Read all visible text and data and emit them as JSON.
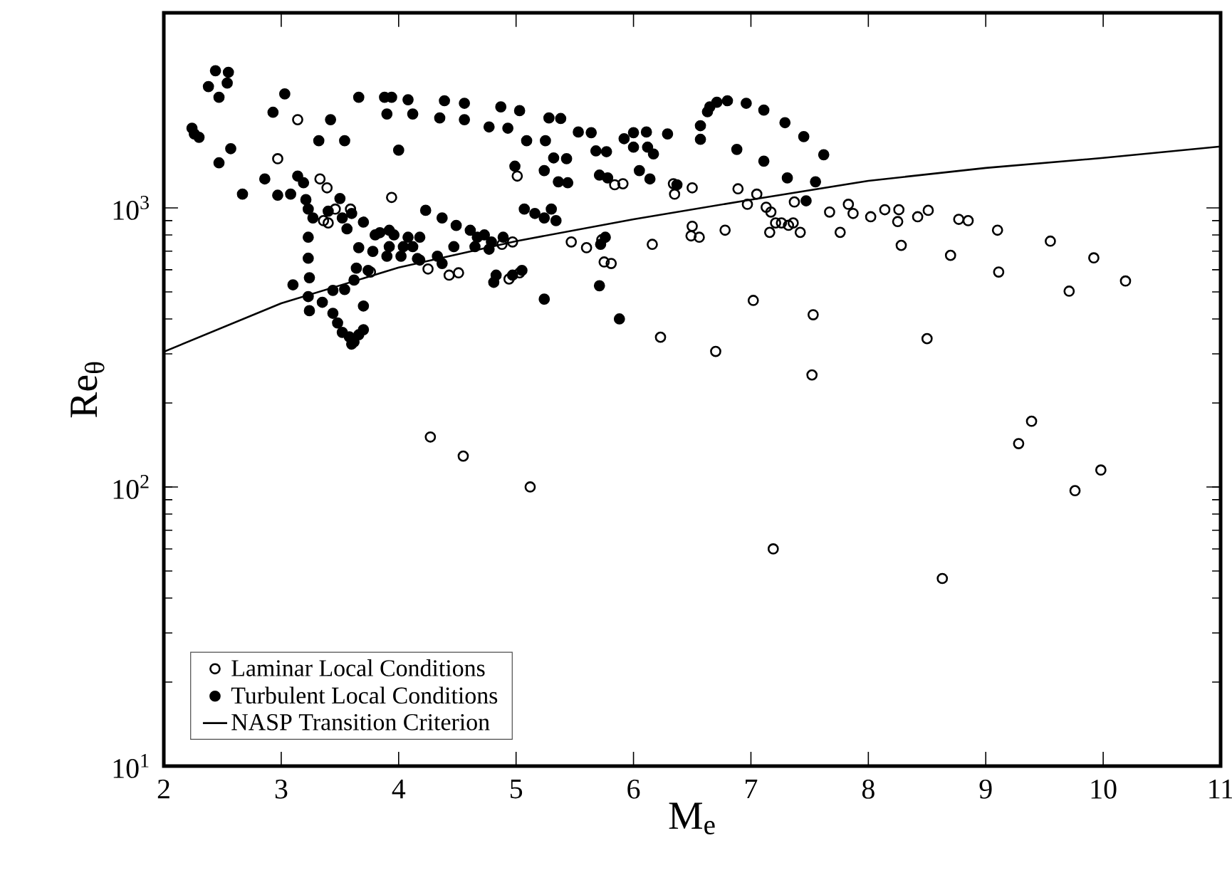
{
  "chart_data": {
    "type": "scatter",
    "xlabel": "M$_{e}$",
    "ylabel": "Re$_{θ}$",
    "log": "y",
    "legend": "bottom left",
    "grid": false,
    "xlim": [
      2,
      11
    ],
    "xticks": [
      2,
      3,
      4,
      5,
      6,
      7,
      8,
      9,
      10,
      11
    ],
    "ylim": [
      10,
      5000
    ],
    "yticks": [
      {
        "value": 10,
        "label": "10$^{1}$"
      },
      {
        "value": 100,
        "label": "10$^{2}$"
      },
      {
        "value": 1000,
        "label": "10$^{3}$"
      }
    ],
    "series": [
      {
        "name": "Laminar Local Conditions",
        "marker": "circle",
        "color": "#000000",
        "x": [
          3.14,
          2.97,
          3.33,
          3.39,
          3.36,
          3.4,
          3.46,
          3.59,
          3.94,
          3.76,
          4.25,
          4.43,
          4.51,
          5.01,
          4.88,
          4.97,
          4.94,
          5.03,
          5.47,
          5.6,
          5.73,
          5.75,
          5.81,
          5.84,
          4.27,
          4.55,
          5.12,
          5.91,
          6.34,
          6.35,
          6.5,
          6.5,
          6.49,
          6.56,
          6.78,
          6.16,
          6.89,
          6.97,
          7.05,
          7.13,
          7.17,
          7.21,
          7.16,
          7.26,
          7.32,
          7.36,
          7.37,
          7.42,
          7.67,
          7.76,
          7.83,
          7.87,
          8.02,
          8.14,
          8.26,
          8.25,
          8.28,
          8.42,
          8.51,
          8.77,
          8.85,
          8.7,
          9.1,
          9.11,
          9.55,
          9.71,
          9.92,
          10.19,
          7.02,
          7.53,
          6.23,
          6.7,
          7.52,
          8.5,
          9.39,
          9.28,
          9.98,
          9.76,
          7.19,
          8.63
        ],
        "values": [
          2070,
          1500,
          1270,
          1180,
          900,
          883,
          990,
          990,
          1090,
          589,
          604,
          574,
          585,
          1300,
          740,
          755,
          556,
          585,
          755,
          720,
          769,
          640,
          632,
          1210,
          151,
          129,
          100,
          1220,
          1220,
          1120,
          1180,
          859,
          794,
          785,
          832,
          740,
          1170,
          1030,
          1120,
          1005,
          966,
          883,
          817,
          883,
          866,
          883,
          1050,
          817,
          966,
          817,
          1030,
          955,
          929,
          985,
          985,
          893,
          734,
          929,
          980,
          910,
          900,
          676,
          832,
          589,
          760,
          503,
          662,
          547,
          466,
          414,
          344,
          306,
          252,
          340,
          172,
          143,
          115,
          97,
          60,
          47
        ]
      },
      {
        "name": "Turbulent Local Conditions",
        "marker": "circle",
        "color": "#000000",
        "x": [
          2.24,
          2.26,
          2.3,
          2.44,
          2.55,
          2.38,
          2.54,
          2.47,
          2.57,
          2.47,
          2.67,
          2.86,
          2.93,
          3.03,
          2.97,
          3.08,
          3.14,
          3.19,
          3.21,
          3.23,
          3.27,
          3.23,
          3.23,
          3.24,
          3.23,
          3.24,
          3.1,
          3.42,
          3.32,
          3.54,
          3.66,
          3.88,
          3.94,
          3.9,
          4.08,
          4.12,
          4.0,
          4.35,
          4.39,
          4.56,
          4.56,
          4.77,
          4.87,
          4.93,
          5.03,
          5.09,
          5.25,
          5.28,
          5.38,
          4.99,
          5.24,
          5.32,
          5.43,
          5.36,
          5.44,
          5.53,
          5.64,
          5.68,
          5.77,
          5.71,
          5.78,
          5.92,
          5.07,
          5.16,
          5.3,
          5.34,
          5.24,
          3.5,
          3.4,
          3.52,
          3.6,
          3.7,
          3.56,
          3.8,
          3.84,
          3.92,
          3.96,
          4.08,
          4.18,
          3.92,
          4.04,
          4.12,
          3.66,
          3.78,
          3.9,
          4.02,
          4.16,
          4.23,
          4.37,
          4.49,
          4.61,
          4.67,
          4.73,
          4.79,
          4.89,
          4.65,
          4.77,
          4.47,
          4.33,
          4.37,
          4.18,
          3.64,
          3.74,
          3.62,
          4.83,
          4.81,
          4.97,
          5.05,
          5.24,
          5.71,
          5.88,
          3.44,
          3.54,
          3.7,
          3.35,
          3.44,
          3.48,
          3.52,
          3.58,
          3.62,
          3.66,
          3.7,
          3.6,
          6.0,
          6.11,
          6.0,
          6.12,
          6.17,
          6.29,
          6.05,
          6.14,
          6.37,
          6.57,
          6.57,
          6.63,
          6.65,
          6.71,
          6.8,
          6.96,
          7.11,
          7.29,
          7.45,
          7.62,
          6.88,
          7.11,
          7.31,
          7.55,
          7.47,
          5.76,
          5.72
        ],
        "values": [
          1930,
          1840,
          1790,
          3100,
          3060,
          2720,
          2800,
          2490,
          1630,
          1450,
          1120,
          1270,
          2200,
          2560,
          1110,
          1120,
          1300,
          1230,
          1070,
          990,
          920,
          785,
          660,
          562,
          481,
          428,
          530,
          2070,
          1740,
          1740,
          2490,
          2490,
          2490,
          2170,
          2440,
          2170,
          1610,
          2100,
          2420,
          2370,
          2070,
          1950,
          2300,
          1930,
          2230,
          1740,
          1740,
          2100,
          2090,
          1410,
          1360,
          1510,
          1500,
          1240,
          1230,
          1870,
          1860,
          1600,
          1590,
          1310,
          1280,
          1770,
          990,
          955,
          990,
          900,
          920,
          1080,
          973,
          920,
          955,
          889,
          841,
          800,
          815,
          831,
          800,
          785,
          785,
          726,
          726,
          726,
          720,
          698,
          671,
          671,
          658,
          980,
          920,
          865,
          831,
          785,
          800,
          755,
          785,
          726,
          711,
          726,
          671,
          632,
          650,
          608,
          597,
          551,
          574,
          541,
          574,
          597,
          471,
          526,
          400,
          506,
          510,
          445,
          459,
          419,
          387,
          358,
          345,
          331,
          351,
          366,
          325,
          1860,
          1870,
          1650,
          1650,
          1560,
          1840,
          1360,
          1270,
          1210,
          1970,
          1760,
          2210,
          2300,
          2390,
          2420,
          2370,
          2240,
          2020,
          1800,
          1550,
          1620,
          1470,
          1280,
          1240,
          1060,
          785,
          740
        ]
      },
      {
        "name": "NASP Transition Criterion",
        "type": "line",
        "color": "#000000",
        "x": [
          2,
          3,
          4,
          5,
          6,
          7,
          8,
          9,
          10,
          11
        ],
        "values": [
          305,
          455,
          611,
          760,
          910,
          1070,
          1250,
          1390,
          1510,
          1660
        ]
      }
    ]
  }
}
